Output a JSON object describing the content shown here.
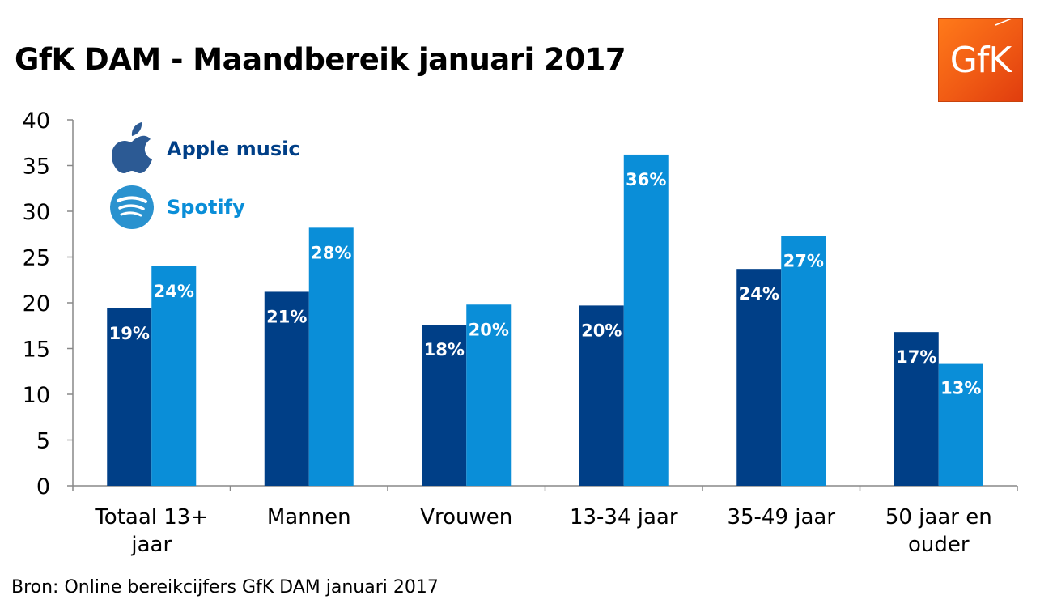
{
  "title": "GfK DAM - Maandbereik januari 2017",
  "logo_text": "GfK",
  "source": "Bron: Online bereikcijfers GfK DAM januari 2017",
  "colors": {
    "apple": "#003f87",
    "spotify": "#0a8ed8",
    "axis": "#888888"
  },
  "chart_data": {
    "type": "bar",
    "title": "GfK DAM - Maandbereik januari 2017",
    "xlabel": "",
    "ylabel": "",
    "ylim": [
      0,
      40
    ],
    "yticks": [
      0,
      5,
      10,
      15,
      20,
      25,
      30,
      35,
      40
    ],
    "grid": false,
    "legend_position": "top-left",
    "categories": [
      [
        "Totaal 13+",
        "jaar"
      ],
      [
        "Mannen"
      ],
      [
        "Vrouwen"
      ],
      [
        "13-34 jaar"
      ],
      [
        "35-49 jaar"
      ],
      [
        "50 jaar en",
        "ouder"
      ]
    ],
    "series": [
      {
        "name": "Apple music",
        "icon": "apple-icon",
        "color": "#003f87",
        "values": [
          19.4,
          21.2,
          17.6,
          19.7,
          23.7,
          16.8
        ],
        "labels": [
          "19%",
          "21%",
          "18%",
          "20%",
          "24%",
          "17%"
        ]
      },
      {
        "name": "Spotify",
        "icon": "spotify-icon",
        "color": "#0a8ed8",
        "values": [
          24.0,
          28.2,
          19.8,
          36.2,
          27.3,
          13.4
        ],
        "labels": [
          "24%",
          "28%",
          "20%",
          "36%",
          "27%",
          "13%"
        ]
      }
    ]
  }
}
